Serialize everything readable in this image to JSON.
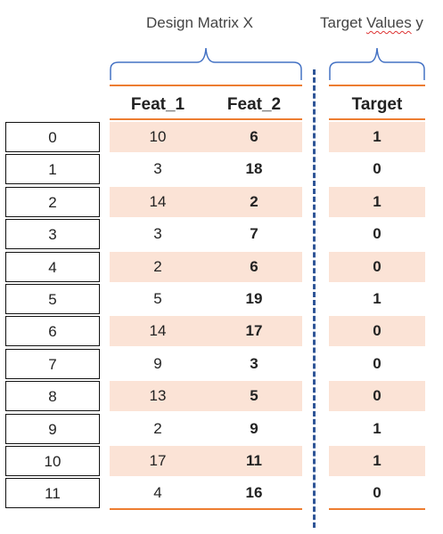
{
  "labels": {
    "design_matrix": "Design Matrix X",
    "target_values_main": "Target ",
    "target_values_squiggle": "Values",
    "target_values_tail": " y"
  },
  "headers": {
    "feat1": "Feat_1",
    "feat2": "Feat_2",
    "target": "Target"
  },
  "rows": [
    {
      "index": "0",
      "feat1": "10",
      "feat2": "6",
      "target": "1"
    },
    {
      "index": "1",
      "feat1": "3",
      "feat2": "18",
      "target": "0"
    },
    {
      "index": "2",
      "feat1": "14",
      "feat2": "2",
      "target": "1"
    },
    {
      "index": "3",
      "feat1": "3",
      "feat2": "7",
      "target": "0"
    },
    {
      "index": "4",
      "feat1": "2",
      "feat2": "6",
      "target": "0"
    },
    {
      "index": "5",
      "feat1": "5",
      "feat2": "19",
      "target": "1"
    },
    {
      "index": "6",
      "feat1": "14",
      "feat2": "17",
      "target": "0"
    },
    {
      "index": "7",
      "feat1": "9",
      "feat2": "3",
      "target": "0"
    },
    {
      "index": "8",
      "feat1": "13",
      "feat2": "5",
      "target": "0"
    },
    {
      "index": "9",
      "feat1": "2",
      "feat2": "9",
      "target": "1"
    },
    {
      "index": "10",
      "feat1": "17",
      "feat2": "11",
      "target": "1"
    },
    {
      "index": "11",
      "feat1": "4",
      "feat2": "16",
      "target": "0"
    }
  ],
  "colors": {
    "accent_line": "#ed7d31",
    "row_shade": "#fbe3d6",
    "brace": "#4472c4",
    "divider": "#2f5597"
  }
}
